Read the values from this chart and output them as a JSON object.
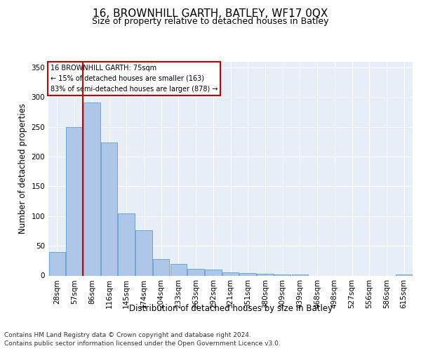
{
  "title": "16, BROWNHILL GARTH, BATLEY, WF17 0QX",
  "subtitle": "Size of property relative to detached houses in Batley",
  "xlabel": "Distribution of detached houses by size in Batley",
  "ylabel": "Number of detached properties",
  "categories": [
    "28sqm",
    "57sqm",
    "86sqm",
    "116sqm",
    "145sqm",
    "174sqm",
    "204sqm",
    "233sqm",
    "263sqm",
    "292sqm",
    "321sqm",
    "351sqm",
    "380sqm",
    "409sqm",
    "439sqm",
    "468sqm",
    "498sqm",
    "527sqm",
    "556sqm",
    "586sqm",
    "615sqm"
  ],
  "values": [
    39,
    250,
    291,
    224,
    104,
    76,
    28,
    19,
    11,
    10,
    5,
    4,
    3,
    2,
    2,
    0,
    0,
    0,
    0,
    0,
    2
  ],
  "bar_color": "#aec6e8",
  "bar_edge_color": "#5a9fd4",
  "vline_x": 1.5,
  "vline_color": "#cc0000",
  "annotation_text": "16 BROWNHILL GARTH: 75sqm\n← 15% of detached houses are smaller (163)\n83% of semi-detached houses are larger (878) →",
  "annotation_box_color": "#ffffff",
  "annotation_box_edge_color": "#cc0000",
  "ylim": [
    0,
    360
  ],
  "yticks": [
    0,
    50,
    100,
    150,
    200,
    250,
    300,
    350
  ],
  "background_color": "#e8eef7",
  "footer_line1": "Contains HM Land Registry data © Crown copyright and database right 2024.",
  "footer_line2": "Contains public sector information licensed under the Open Government Licence v3.0.",
  "title_fontsize": 11,
  "subtitle_fontsize": 9,
  "axis_label_fontsize": 8.5,
  "tick_fontsize": 7.5,
  "footer_fontsize": 6.5
}
